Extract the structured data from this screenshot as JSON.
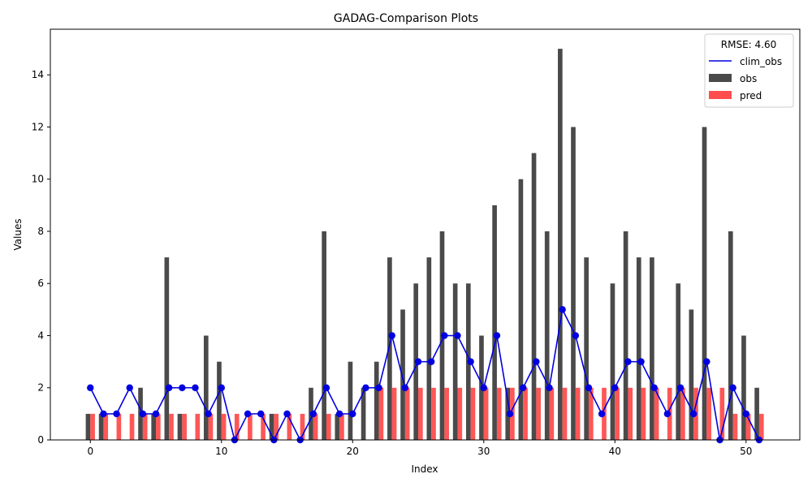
{
  "chart_data": {
    "type": "bar",
    "title": "GADAG-Comparison Plots",
    "xlabel": "Index",
    "ylabel": "Values",
    "xlim": [
      -3.05,
      54.1
    ],
    "ylim": [
      0,
      15.75
    ],
    "x_ticks": [
      0,
      10,
      20,
      30,
      40,
      50
    ],
    "y_ticks": [
      0,
      2,
      4,
      6,
      8,
      10,
      12,
      14
    ],
    "grid": false,
    "legend": {
      "placement": "top-right",
      "title": "RMSE: 4.60",
      "entries": [
        "clim_obs",
        "obs",
        "pred"
      ]
    },
    "colors": {
      "obs": "#4a4a4a",
      "pred": "#ff4d4d",
      "clim_obs": "#0000e0"
    },
    "x": [
      0,
      1,
      2,
      3,
      4,
      5,
      6,
      7,
      8,
      9,
      10,
      11,
      12,
      13,
      14,
      15,
      16,
      17,
      18,
      19,
      20,
      21,
      22,
      23,
      24,
      25,
      26,
      27,
      28,
      29,
      30,
      31,
      32,
      33,
      34,
      35,
      36,
      37,
      38,
      39,
      40,
      41,
      42,
      43,
      44,
      45,
      46,
      47,
      48,
      49,
      50,
      51
    ],
    "series": [
      {
        "name": "obs",
        "kind": "bar",
        "values": [
          1,
          1,
          0,
          0,
          2,
          1,
          7,
          1,
          0,
          4,
          3,
          0,
          0,
          0,
          1,
          0,
          0,
          2,
          8,
          1,
          3,
          2,
          3,
          7,
          5,
          6,
          7,
          8,
          6,
          6,
          4,
          9,
          2,
          10,
          11,
          8,
          15,
          12,
          7,
          0,
          6,
          8,
          7,
          7,
          0,
          6,
          5,
          12,
          0,
          8,
          4,
          2
        ]
      },
      {
        "name": "pred",
        "kind": "bar",
        "values": [
          1,
          1,
          1,
          1,
          1,
          1,
          1,
          1,
          1,
          1,
          1,
          1,
          1,
          1,
          1,
          1,
          1,
          1,
          1,
          1,
          0,
          0,
          2,
          2,
          2,
          2,
          2,
          2,
          2,
          2,
          2,
          2,
          2,
          2,
          2,
          2,
          2,
          2,
          2,
          2,
          2,
          2,
          2,
          2,
          2,
          2,
          2,
          2,
          2,
          1,
          1,
          1
        ]
      },
      {
        "name": "clim_obs",
        "kind": "line",
        "values": [
          2,
          1,
          1,
          2,
          1,
          1,
          2,
          2,
          2,
          1,
          2,
          0,
          1,
          1,
          0,
          1,
          0,
          1,
          2,
          1,
          1,
          2,
          2,
          4,
          2,
          3,
          3,
          4,
          4,
          3,
          2,
          4,
          1,
          2,
          3,
          2,
          5,
          4,
          2,
          1,
          2,
          3,
          3,
          2,
          1,
          2,
          1,
          3,
          0,
          2,
          1,
          0
        ]
      }
    ]
  }
}
